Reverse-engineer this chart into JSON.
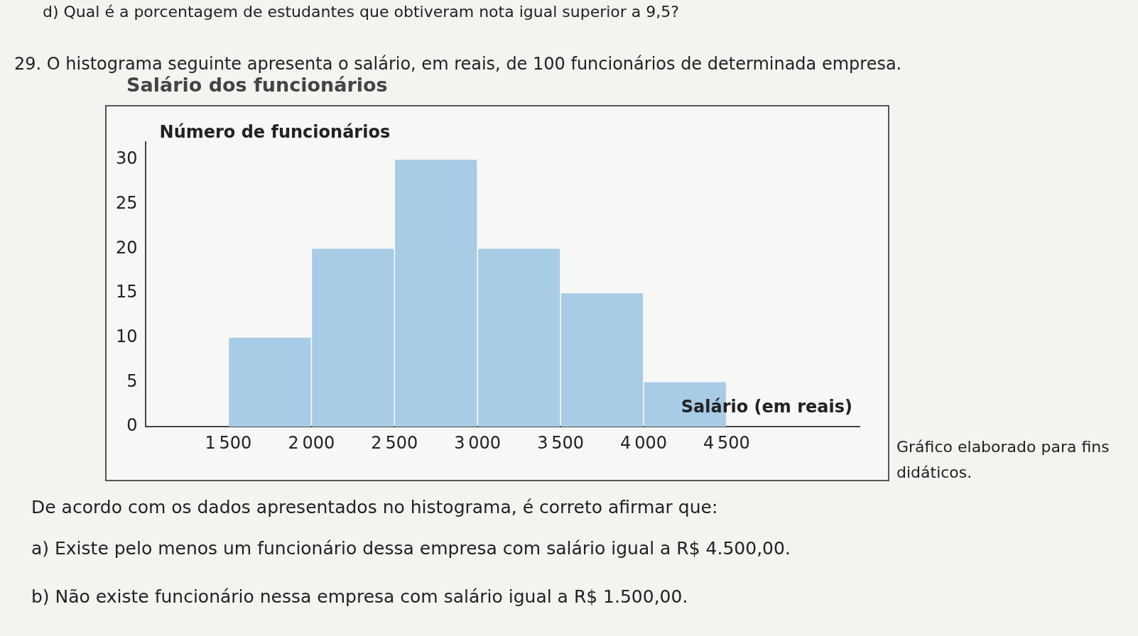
{
  "chart_data": {
    "type": "histogram",
    "title": "Salário dos funcionários",
    "ylabel": "Número de funcionários",
    "xlabel": "Salário (em reais)",
    "bins": [
      1500,
      2000,
      2500,
      3000,
      3500,
      4000,
      4500
    ],
    "values": [
      10,
      20,
      30,
      20,
      15,
      5
    ],
    "color": "#a8cbe6",
    "xlim": [
      1000,
      5300
    ],
    "xticks": [
      1500,
      2000,
      2500,
      3000,
      3500,
      4000,
      4500
    ],
    "ylim": [
      0,
      32
    ],
    "yticks": [
      0,
      5,
      10,
      15,
      20,
      25,
      30
    ],
    "grid": false,
    "legend": false,
    "annotations": [
      "d) Qual é a porcentagem de estudantes que obtiveram nota igual superior a 9,5?",
      "29. O histograma seguinte apresenta o salário, em reais, de 100 funcionários de determinada empresa.",
      "Gráfico elaborado para fins didáticos.",
      "De acordo com os dados apresentados no histograma, é correto afirmar que:",
      "a) Existe pelo menos um funcionário dessa empresa com salário igual a R$ 4.500,00.",
      "b) Não existe funcionário nessa empresa com salário igual a R$ 1.500,00."
    ]
  }
}
